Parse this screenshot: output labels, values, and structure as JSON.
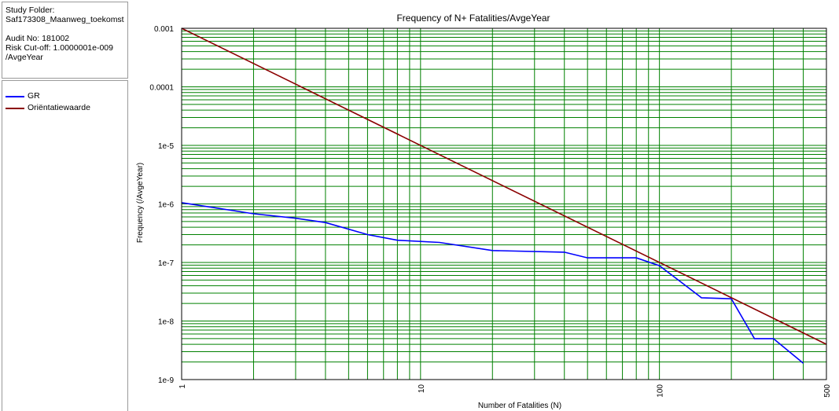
{
  "info": {
    "study_folder_label": "Study Folder:",
    "study_folder_value": "Saf173308_Maanweg_toekomst",
    "audit_no": "Audit No: 181002",
    "risk_cutoff": "Risk Cut-off: 1.0000001e-009",
    "risk_cutoff_unit": "/AvgeYear"
  },
  "legend": [
    {
      "label": "GR",
      "color": "#0000ff"
    },
    {
      "label": "Oriëntatiewaarde",
      "color": "#8b0000"
    }
  ],
  "chart_data": {
    "type": "line",
    "title": "Frequency of N+ Fatalities/AvgeYear",
    "xlabel": "Number of Fatalities (N)",
    "ylabel": "Frequency (/AvgeYear)",
    "xscale": "log",
    "yscale": "log",
    "xlim": [
      1,
      500
    ],
    "ylim": [
      1e-09,
      0.001
    ],
    "x_ticks": [
      {
        "value": 1,
        "label": "1"
      },
      {
        "value": 10,
        "label": "10"
      },
      {
        "value": 100,
        "label": "100"
      },
      {
        "value": 500,
        "label": "500"
      }
    ],
    "y_ticks": [
      {
        "value": 0.001,
        "label": "0.001"
      },
      {
        "value": 0.0001,
        "label": "0.0001"
      },
      {
        "value": 1e-05,
        "label": "1e-5"
      },
      {
        "value": 1e-06,
        "label": "1e-6"
      },
      {
        "value": 1e-07,
        "label": "1e-7"
      },
      {
        "value": 1e-08,
        "label": "1e-8"
      },
      {
        "value": 1e-09,
        "label": "1e-9"
      }
    ],
    "grid": true,
    "grid_color": "#008000",
    "legend_placement": "left",
    "series": [
      {
        "name": "GR",
        "color": "#0000ff",
        "x": [
          1,
          2,
          3,
          4,
          6,
          8,
          12,
          20,
          40,
          50,
          80,
          100,
          120,
          150,
          200,
          250,
          300,
          400
        ],
        "y": [
          1.05e-06,
          6.8e-07,
          5.7e-07,
          4.8e-07,
          3e-07,
          2.4e-07,
          2.2e-07,
          1.6e-07,
          1.5e-07,
          1.2e-07,
          1.2e-07,
          8.8e-08,
          5e-08,
          2.5e-08,
          2.4e-08,
          5e-09,
          5e-09,
          1.9e-09
        ]
      },
      {
        "name": "Oriëntatiewaarde",
        "color": "#8b0000",
        "x": [
          1,
          500
        ],
        "y": [
          0.001,
          4e-09
        ]
      }
    ]
  }
}
